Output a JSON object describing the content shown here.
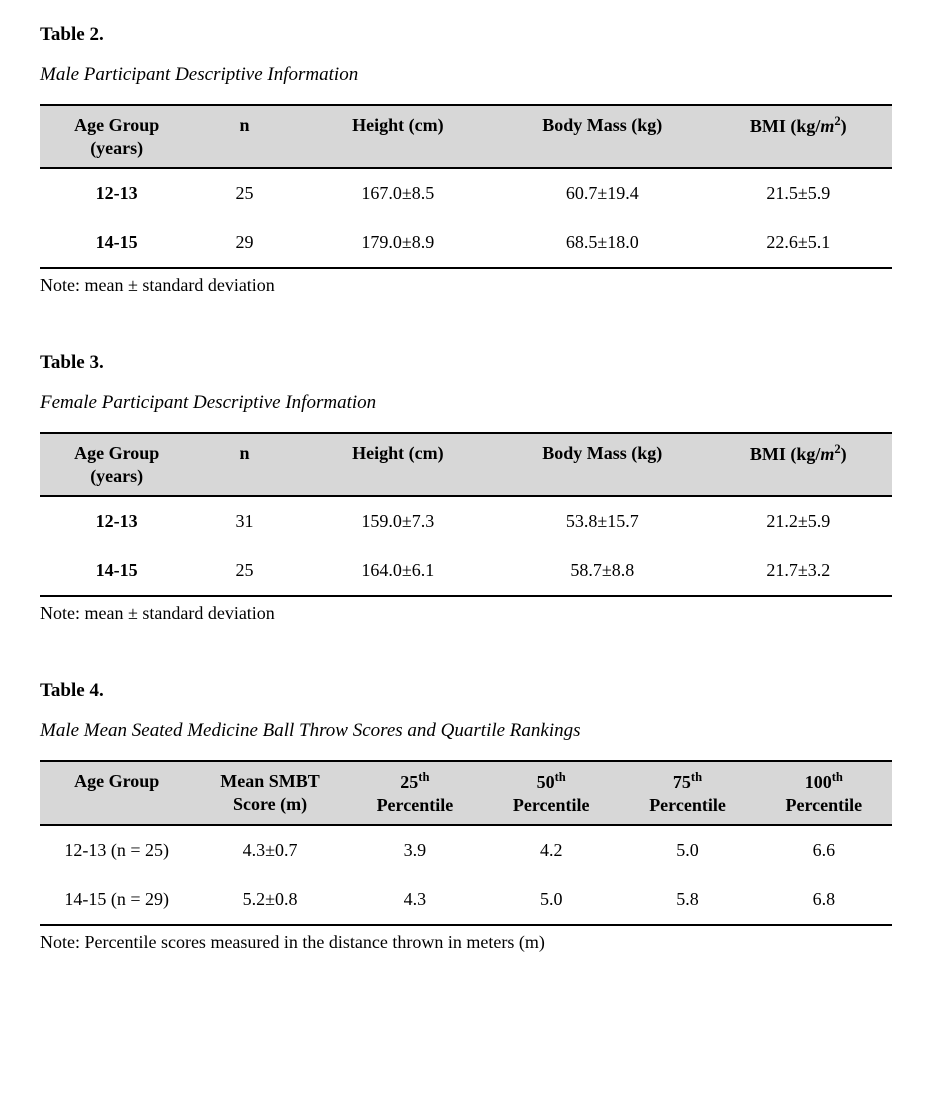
{
  "tables": [
    {
      "label": "Table 2.",
      "caption": "Male Participant Descriptive Information",
      "note": "Note: mean ± standard deviation",
      "header_bg": "#d7d7d7",
      "col_widths_pct": [
        18,
        12,
        24,
        24,
        22
      ],
      "columns": [
        {
          "label_html": "Age Group<br>(years)"
        },
        {
          "label_html": "n"
        },
        {
          "label_html": "Height (cm)"
        },
        {
          "label_html": "Body Mass (kg)"
        },
        {
          "label_html": "BMI (kg/<span class='m2'>m</span><sup>2</sup>)"
        }
      ],
      "rows": [
        {
          "head": "12-13",
          "cells": [
            "25",
            "167.0±8.5",
            "60.7±19.4",
            "21.5±5.9"
          ]
        },
        {
          "head": "14-15",
          "cells": [
            "29",
            "179.0±8.9",
            "68.5±18.0",
            "22.6±5.1"
          ]
        }
      ],
      "bold_rowhead": true
    },
    {
      "label": "Table 3.",
      "caption": "Female Participant Descriptive Information",
      "note": "Note: mean ± standard deviation",
      "header_bg": "#d7d7d7",
      "col_widths_pct": [
        18,
        12,
        24,
        24,
        22
      ],
      "columns": [
        {
          "label_html": "Age Group<br>(years)"
        },
        {
          "label_html": "n"
        },
        {
          "label_html": "Height (cm)"
        },
        {
          "label_html": "Body Mass (kg)"
        },
        {
          "label_html": "BMI (kg/<span class='m2'>m</span><sup>2</sup>)"
        }
      ],
      "rows": [
        {
          "head": "12-13",
          "cells": [
            "31",
            "159.0±7.3",
            "53.8±15.7",
            "21.2±5.9"
          ]
        },
        {
          "head": "14-15",
          "cells": [
            "25",
            "164.0±6.1",
            "58.7±8.8",
            "21.7±3.2"
          ]
        }
      ],
      "bold_rowhead": true
    },
    {
      "label": "Table 4.",
      "caption": "Male Mean Seated Medicine Ball Throw Scores and Quartile Rankings",
      "note": "Note: Percentile scores measured in the distance thrown in meters (m)",
      "header_bg": "#d7d7d7",
      "col_widths_pct": [
        18,
        18,
        16,
        16,
        16,
        16
      ],
      "columns": [
        {
          "label_html": "Age Group"
        },
        {
          "label_html": "Mean SMBT<br>Score (m)"
        },
        {
          "label_html": "25<sup>th</sup><br>Percentile"
        },
        {
          "label_html": "50<sup>th</sup><br>Percentile"
        },
        {
          "label_html": "75<sup>th</sup><br>Percentile"
        },
        {
          "label_html": "100<sup>th</sup><br>Percentile"
        }
      ],
      "rows": [
        {
          "head": "12-13 (n = 25)",
          "cells": [
            "4.3±0.7",
            "3.9",
            "4.2",
            "5.0",
            "6.6"
          ]
        },
        {
          "head": "14-15 (n = 29)",
          "cells": [
            "5.2±0.8",
            "4.3",
            "5.0",
            "5.8",
            "6.8"
          ]
        }
      ],
      "bold_rowhead": false
    }
  ]
}
